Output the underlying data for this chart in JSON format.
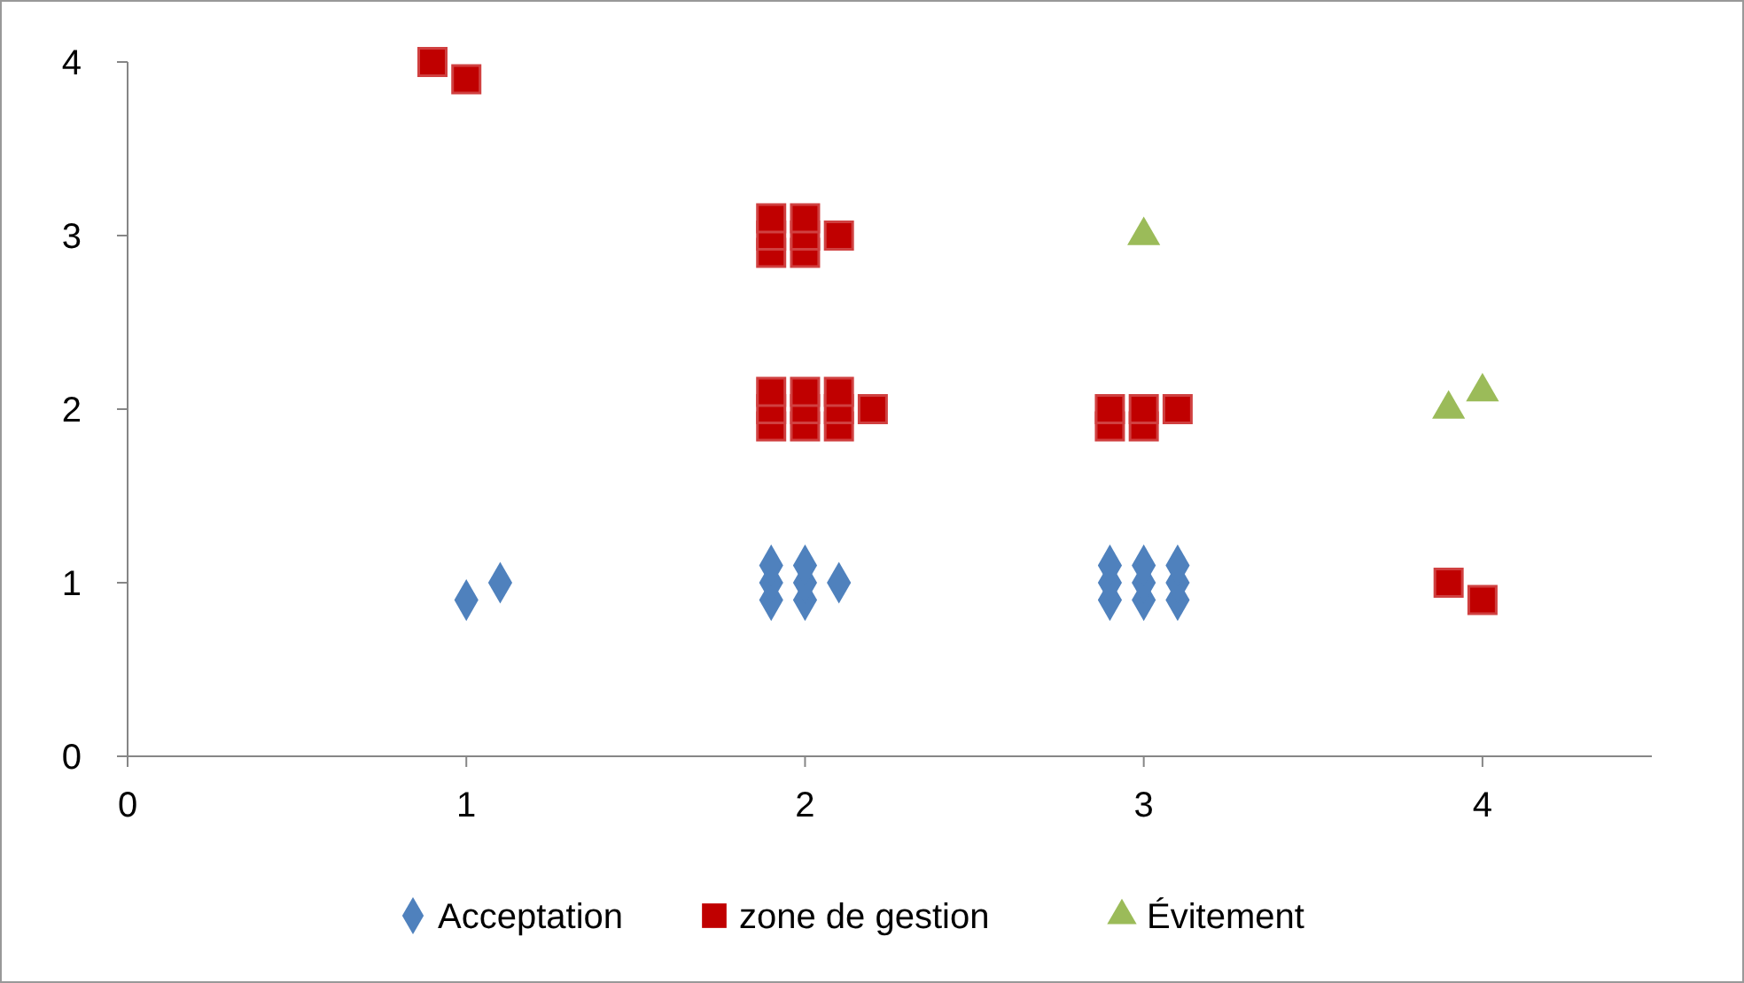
{
  "chart_data": {
    "type": "scatter",
    "xlim": [
      0,
      4.5
    ],
    "xticks": [
      0,
      1,
      2,
      3,
      4
    ],
    "ylim": [
      0,
      4
    ],
    "yticks": [
      0,
      1,
      2,
      3,
      4
    ],
    "grid": false,
    "legend": "bottom",
    "series": [
      {
        "name": "Acceptation",
        "color": "#4f81bd",
        "marker": "diamond",
        "x": [
          1,
          1.1,
          1.9,
          2,
          1.9,
          2,
          1.9,
          2,
          2.1,
          2.9,
          3,
          3.1,
          2.9,
          3,
          3.1,
          2.9,
          3,
          3.1
        ],
        "values": [
          0.9,
          1,
          0.9,
          0.9,
          1,
          1,
          1.1,
          1.1,
          1,
          0.9,
          0.9,
          0.9,
          1,
          1,
          1,
          1.1,
          1.1,
          1.1
        ]
      },
      {
        "name": "zone de gestion",
        "color": "#c00000",
        "marker": "square",
        "x": [
          0.9,
          1,
          1.9,
          2,
          1.9,
          2,
          1.9,
          2,
          2.1,
          1.9,
          2,
          2.1,
          1.9,
          2,
          2.1,
          1.9,
          2,
          2.1,
          2.2,
          2.9,
          3,
          2.9,
          3,
          3.1,
          3.9,
          4
        ],
        "values": [
          4,
          3.9,
          2.9,
          2.9,
          3,
          3,
          3.1,
          3.1,
          3,
          1.9,
          1.9,
          1.9,
          2,
          2,
          2,
          2.1,
          2.1,
          2.1,
          2,
          1.9,
          1.9,
          2,
          2,
          2,
          1,
          0.9
        ]
      },
      {
        "name": "Évitement",
        "color": "#9bbb59",
        "marker": "triangle",
        "x": [
          3,
          3.9,
          4
        ],
        "values": [
          3,
          2,
          2.1
        ]
      }
    ]
  }
}
